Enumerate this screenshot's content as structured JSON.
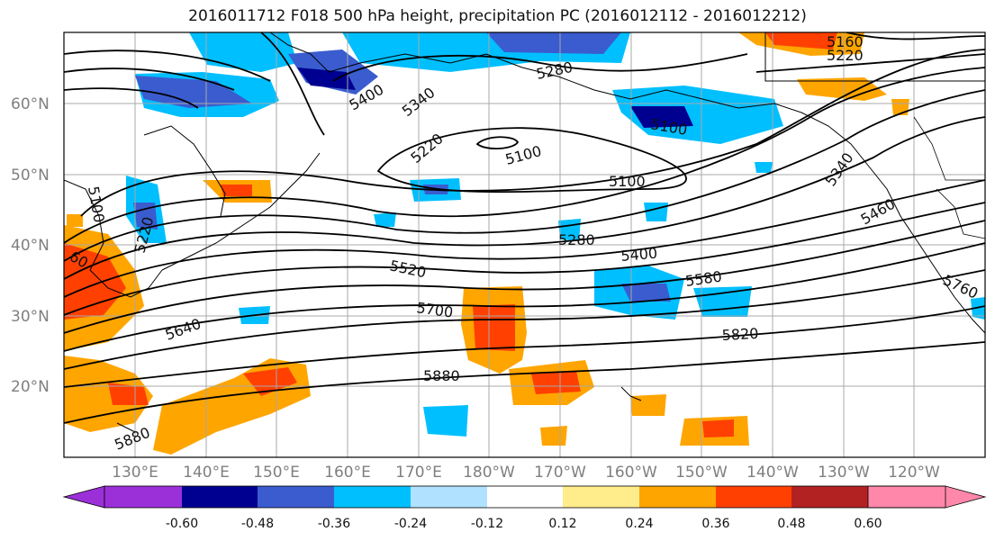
{
  "title": "2016011712 F018 500 hPa height, precipitation PC (2016012112 - 2016012212)",
  "lat_labels": [
    "60°N",
    "50°N",
    "40°N",
    "30°N",
    "20°N"
  ],
  "lon_labels": [
    "130°E",
    "140°E",
    "150°E",
    "160°E",
    "170°E",
    "180°W",
    "170°W",
    "160°W",
    "150°W",
    "140°W",
    "130°W",
    "120°W"
  ],
  "colorbar": {
    "labels": [
      "-0.60",
      "-0.48",
      "-0.36",
      "-0.24",
      "-0.12",
      "0.12",
      "0.24",
      "0.36",
      "0.48",
      "0.60"
    ],
    "colors": [
      "#9b30d9",
      "#000090",
      "#3a5ccf",
      "#00bfff",
      "#b0e2ff",
      "#ffffff",
      "#ffec8b",
      "#ffa500",
      "#ff4000",
      "#b22222",
      "#ff88aa"
    ]
  },
  "contour_labels": [
    "5160",
    "5220",
    "5280",
    "5340",
    "5400",
    "5220",
    "5100",
    "5100",
    "5100",
    "5280",
    "5400",
    "5520",
    "5580",
    "5460",
    "5340",
    "5760",
    "5640",
    "5700",
    "5820",
    "5880",
    "5880",
    "5100",
    "5220",
    "60"
  ]
}
